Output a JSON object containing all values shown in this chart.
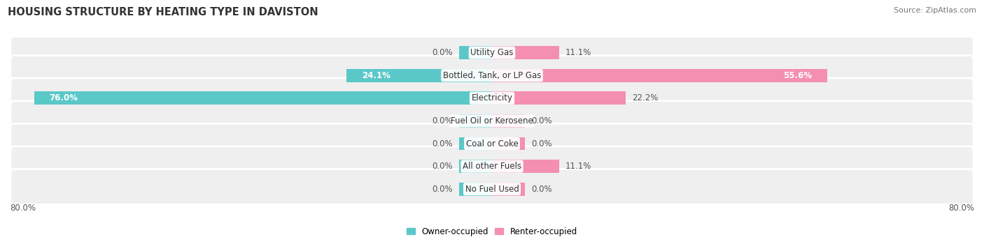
{
  "title": "HOUSING STRUCTURE BY HEATING TYPE IN DAVISTON",
  "source": "Source: ZipAtlas.com",
  "categories": [
    "Utility Gas",
    "Bottled, Tank, or LP Gas",
    "Electricity",
    "Fuel Oil or Kerosene",
    "Coal or Coke",
    "All other Fuels",
    "No Fuel Used"
  ],
  "owner_values": [
    0.0,
    24.1,
    76.0,
    0.0,
    0.0,
    0.0,
    0.0
  ],
  "renter_values": [
    11.1,
    55.6,
    22.2,
    0.0,
    0.0,
    11.1,
    0.0
  ],
  "owner_color": "#5bc8c8",
  "renter_color": "#f48fb1",
  "axis_max": 80.0,
  "axis_min": -80.0,
  "row_bg_color": "#efefef",
  "bar_height": 0.58,
  "stub_size": 5.5,
  "label_fontsize": 8.5,
  "title_fontsize": 10.5,
  "source_fontsize": 8,
  "legend_fontsize": 8.5
}
